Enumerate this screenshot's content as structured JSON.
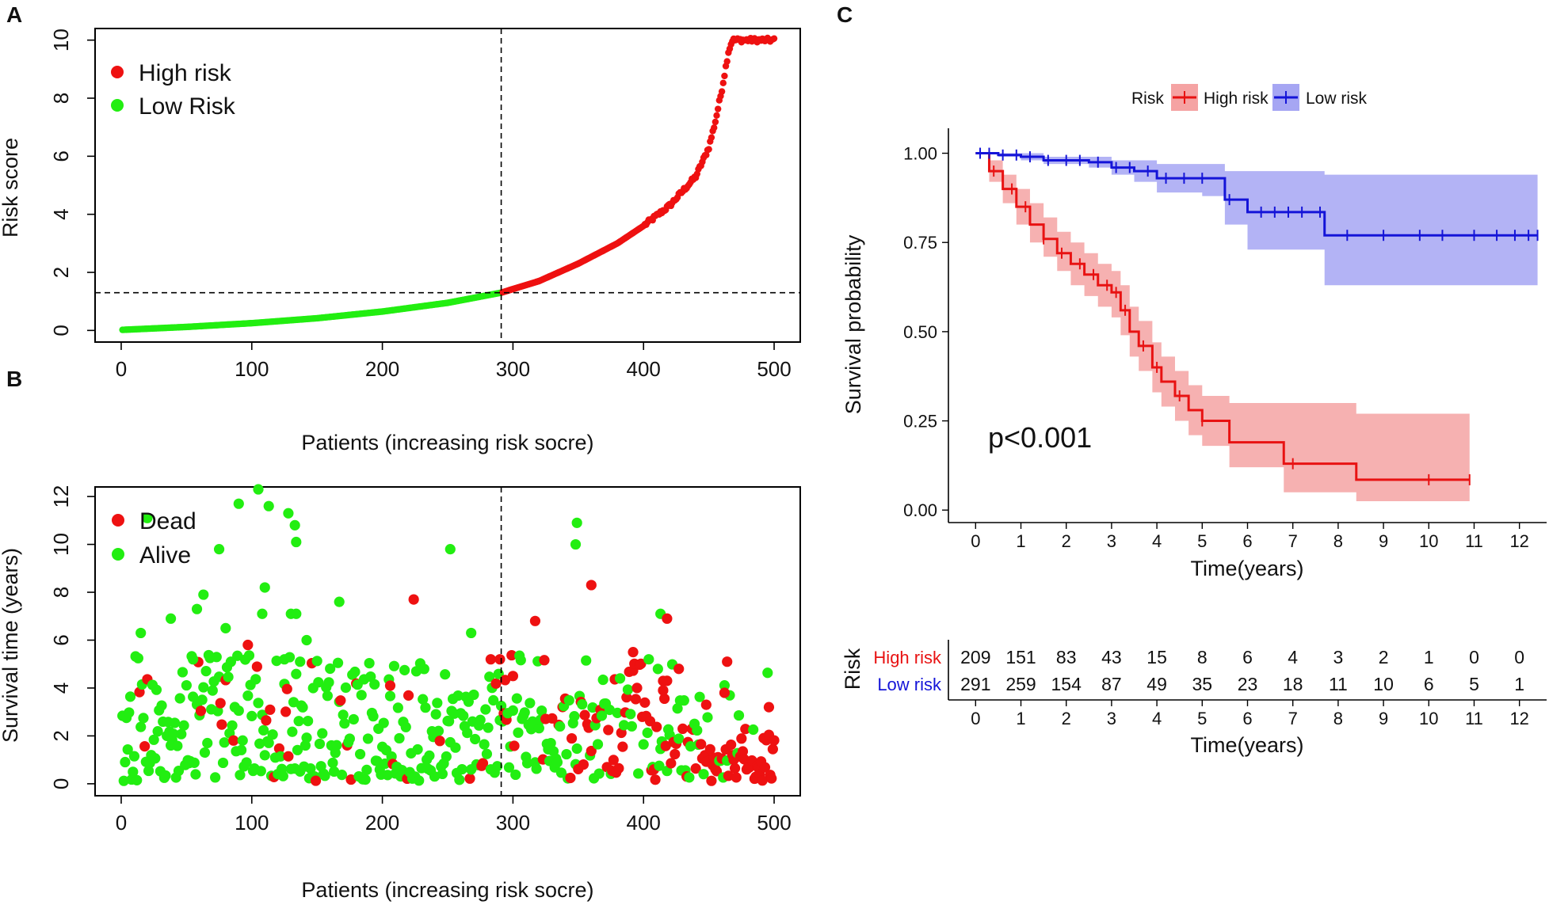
{
  "panel_labels": {
    "a": "A",
    "b": "B",
    "c": "C"
  },
  "colors": {
    "high": "#ee1111",
    "low": "#22ee11",
    "km_high": "#e81212",
    "km_low": "#1414d8",
    "km_high_band": "#f5a3a3",
    "km_low_band": "#a6a6f3"
  },
  "chart_data": [
    {
      "id": "A",
      "type": "scatter",
      "xlabel": "Patients (increasing risk socre)",
      "ylabel": "Risk score",
      "xlim": [
        -20,
        520
      ],
      "ylim": [
        -0.4,
        10.4
      ],
      "xticks": [
        0,
        100,
        200,
        300,
        400,
        500
      ],
      "yticks": [
        0,
        2,
        4,
        6,
        8,
        10
      ],
      "cutoff_x": 291,
      "cutoff_y": 1.3,
      "n_patients": 500,
      "legend": [
        "High risk",
        "Low Risk"
      ],
      "curve_keypoints": [
        [
          1,
          0.02
        ],
        [
          50,
          0.12
        ],
        [
          100,
          0.25
        ],
        [
          150,
          0.42
        ],
        [
          200,
          0.65
        ],
        [
          250,
          0.95
        ],
        [
          291,
          1.3
        ],
        [
          320,
          1.7
        ],
        [
          350,
          2.3
        ],
        [
          380,
          3.0
        ],
        [
          400,
          3.6
        ],
        [
          420,
          4.3
        ],
        [
          440,
          5.3
        ],
        [
          450,
          6.3
        ],
        [
          455,
          7.2
        ],
        [
          460,
          8.3
        ],
        [
          465,
          9.6
        ],
        [
          468,
          10
        ],
        [
          500,
          10
        ]
      ]
    },
    {
      "id": "B",
      "type": "scatter",
      "xlabel": "Patients (increasing risk socre)",
      "ylabel": "Survival time (years)",
      "xlim": [
        -20,
        520
      ],
      "ylim": [
        -0.5,
        12.4
      ],
      "xticks": [
        0,
        100,
        200,
        300,
        400,
        500
      ],
      "yticks": [
        0,
        2,
        4,
        6,
        8,
        10,
        12
      ],
      "cutoff_x": 291,
      "legend": [
        "Dead",
        "Alive"
      ],
      "notable_points": {
        "alive": [
          [
            105,
            12.3
          ],
          [
            90,
            11.7
          ],
          [
            113,
            11.6
          ],
          [
            128,
            11.3
          ],
          [
            20,
            11.1
          ],
          [
            133,
            10.8
          ],
          [
            349,
            10.9
          ],
          [
            348,
            10.0
          ],
          [
            134,
            10.1
          ],
          [
            75,
            9.8
          ],
          [
            252,
            9.8
          ],
          [
            110,
            8.2
          ],
          [
            63,
            7.9
          ],
          [
            167,
            7.6
          ],
          [
            130,
            7.1
          ],
          [
            134,
            7.1
          ],
          [
            108,
            7.1
          ],
          [
            58,
            7.3
          ],
          [
            413,
            7.1
          ],
          [
            15,
            6.3
          ],
          [
            38,
            6.9
          ],
          [
            80,
            6.5
          ],
          [
            142,
            6.0
          ],
          [
            268,
            6.3
          ],
          [
            55,
            5.2
          ],
          [
            125,
            5.2
          ],
          [
            137,
            5.1
          ]
        ],
        "dead": [
          [
            360,
            8.3
          ],
          [
            224,
            7.7
          ],
          [
            317,
            6.8
          ],
          [
            418,
            6.9
          ],
          [
            97,
            5.8
          ],
          [
            392,
            5.5
          ],
          [
            283,
            5.2
          ],
          [
            290,
            5.2
          ],
          [
            464,
            5.1
          ],
          [
            418,
            4.3
          ],
          [
            427,
            4.8
          ],
          [
            206,
            4.1
          ],
          [
            300,
            4.5
          ],
          [
            415,
            3.9
          ],
          [
            448,
            3.3
          ],
          [
            462,
            3.8
          ],
          [
            496,
            3.2
          ]
        ]
      }
    },
    {
      "id": "C",
      "type": "line",
      "xlabel": "Time(years)",
      "ylabel": "Survival probability",
      "xlim": [
        -0.6,
        12.6
      ],
      "ylim": [
        -0.035,
        1.07
      ],
      "xticks": [
        0,
        1,
        2,
        3,
        4,
        5,
        6,
        7,
        8,
        9,
        10,
        11,
        12
      ],
      "yticks": [
        0.0,
        0.25,
        0.5,
        0.75,
        1.0
      ],
      "ytick_labels": [
        "0.00",
        "0.25",
        "0.50",
        "0.75",
        "1.00"
      ],
      "legend_title": "Risk",
      "legend": [
        "High risk",
        "Low risk"
      ],
      "pvalue": "p<0.001",
      "series": [
        {
          "name": "High risk",
          "x": [
            0,
            0.3,
            0.6,
            0.9,
            1.2,
            1.5,
            1.8,
            2.1,
            2.4,
            2.7,
            3.0,
            3.2,
            3.4,
            3.6,
            3.9,
            4.1,
            4.4,
            4.7,
            5.0,
            5.6,
            6.8,
            7.7,
            8.4,
            10.9
          ],
          "y": [
            1.0,
            0.95,
            0.9,
            0.85,
            0.8,
            0.76,
            0.72,
            0.69,
            0.66,
            0.63,
            0.61,
            0.56,
            0.5,
            0.46,
            0.4,
            0.36,
            0.32,
            0.28,
            0.25,
            0.19,
            0.13,
            0.13,
            0.085,
            0.085
          ],
          "lower": [
            1.0,
            0.92,
            0.86,
            0.8,
            0.75,
            0.71,
            0.67,
            0.63,
            0.6,
            0.57,
            0.54,
            0.49,
            0.43,
            0.39,
            0.33,
            0.29,
            0.25,
            0.21,
            0.18,
            0.12,
            0.05,
            0.05,
            0.025,
            0.025
          ],
          "upper": [
            1.0,
            0.98,
            0.94,
            0.9,
            0.86,
            0.82,
            0.78,
            0.75,
            0.72,
            0.69,
            0.67,
            0.63,
            0.57,
            0.53,
            0.47,
            0.43,
            0.39,
            0.35,
            0.32,
            0.3,
            0.3,
            0.3,
            0.27,
            0.27
          ],
          "censor_x": [
            0.4,
            0.8,
            1.1,
            1.5,
            1.9,
            2.3,
            2.6,
            2.9,
            3.1,
            3.3,
            3.7,
            4.0,
            4.5,
            5.0,
            7.0,
            10.0,
            10.9
          ]
        },
        {
          "name": "Low risk",
          "x": [
            0,
            0.5,
            1.0,
            1.5,
            2.5,
            3.0,
            3.5,
            4.0,
            5.0,
            5.5,
            6.0,
            7.7,
            12.4
          ],
          "y": [
            1.0,
            0.995,
            0.99,
            0.98,
            0.975,
            0.96,
            0.95,
            0.93,
            0.93,
            0.87,
            0.835,
            0.77,
            0.77
          ],
          "lower": [
            1.0,
            0.99,
            0.98,
            0.97,
            0.96,
            0.94,
            0.92,
            0.89,
            0.88,
            0.8,
            0.73,
            0.63,
            0.63
          ],
          "upper": [
            1.0,
            1.0,
            1.0,
            0.99,
            0.99,
            0.98,
            0.98,
            0.97,
            0.97,
            0.95,
            0.95,
            0.94,
            0.94
          ],
          "censor_x": [
            0.1,
            0.3,
            0.6,
            0.9,
            1.2,
            1.6,
            2.0,
            2.3,
            2.7,
            3.1,
            3.4,
            3.8,
            4.2,
            4.6,
            5.0,
            5.6,
            6.3,
            6.6,
            6.9,
            7.2,
            7.6,
            8.2,
            9.0,
            9.8,
            10.3,
            11.0,
            11.5,
            11.9,
            12.2,
            12.4
          ]
        }
      ],
      "risk_table": {
        "title": "Risk",
        "xlabel": "Time(years)",
        "rows": [
          {
            "label": "High risk",
            "values": [
              "209",
              "151",
              "83",
              "43",
              "15",
              "8",
              "6",
              "4",
              "3",
              "2",
              "1",
              "0",
              "0"
            ]
          },
          {
            "label": "Low risk",
            "values": [
              "291",
              "259",
              "154",
              "87",
              "49",
              "35",
              "23",
              "18",
              "11",
              "10",
              "6",
              "5",
              "1"
            ]
          }
        ]
      }
    }
  ]
}
